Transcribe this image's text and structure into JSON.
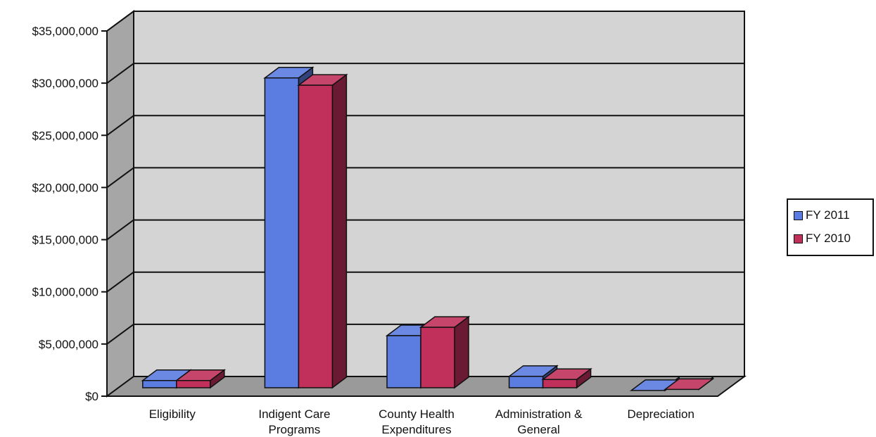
{
  "chart_data": {
    "type": "bar",
    "categories": [
      "Eligibility",
      "Indigent Care Programs",
      "County Health Expenditures",
      "Administration & General",
      "Depreciation"
    ],
    "category_lines": [
      [
        "Eligibility"
      ],
      [
        "Indigent Care",
        "Programs"
      ],
      [
        "County Health",
        "Expenditures"
      ],
      [
        "Administration &",
        "General"
      ],
      [
        "Depreciation"
      ]
    ],
    "series": [
      {
        "name": "FY 2011",
        "color": "#5b7ce0",
        "values": [
          1500000,
          30500000,
          5800000,
          1900000,
          550000
        ]
      },
      {
        "name": "FY 2010",
        "color": "#c0305a",
        "values": [
          1500000,
          29800000,
          6600000,
          1600000,
          650000
        ]
      }
    ],
    "y_ticks": [
      "$0",
      "$5,000,000",
      "$10,000,000",
      "$15,000,000",
      "$20,000,000",
      "$25,000,000",
      "$30,000,000",
      "$35,000,000"
    ],
    "ylim": [
      0,
      35000000
    ],
    "grid": true,
    "legend_position": "right",
    "style": "3d-column"
  }
}
